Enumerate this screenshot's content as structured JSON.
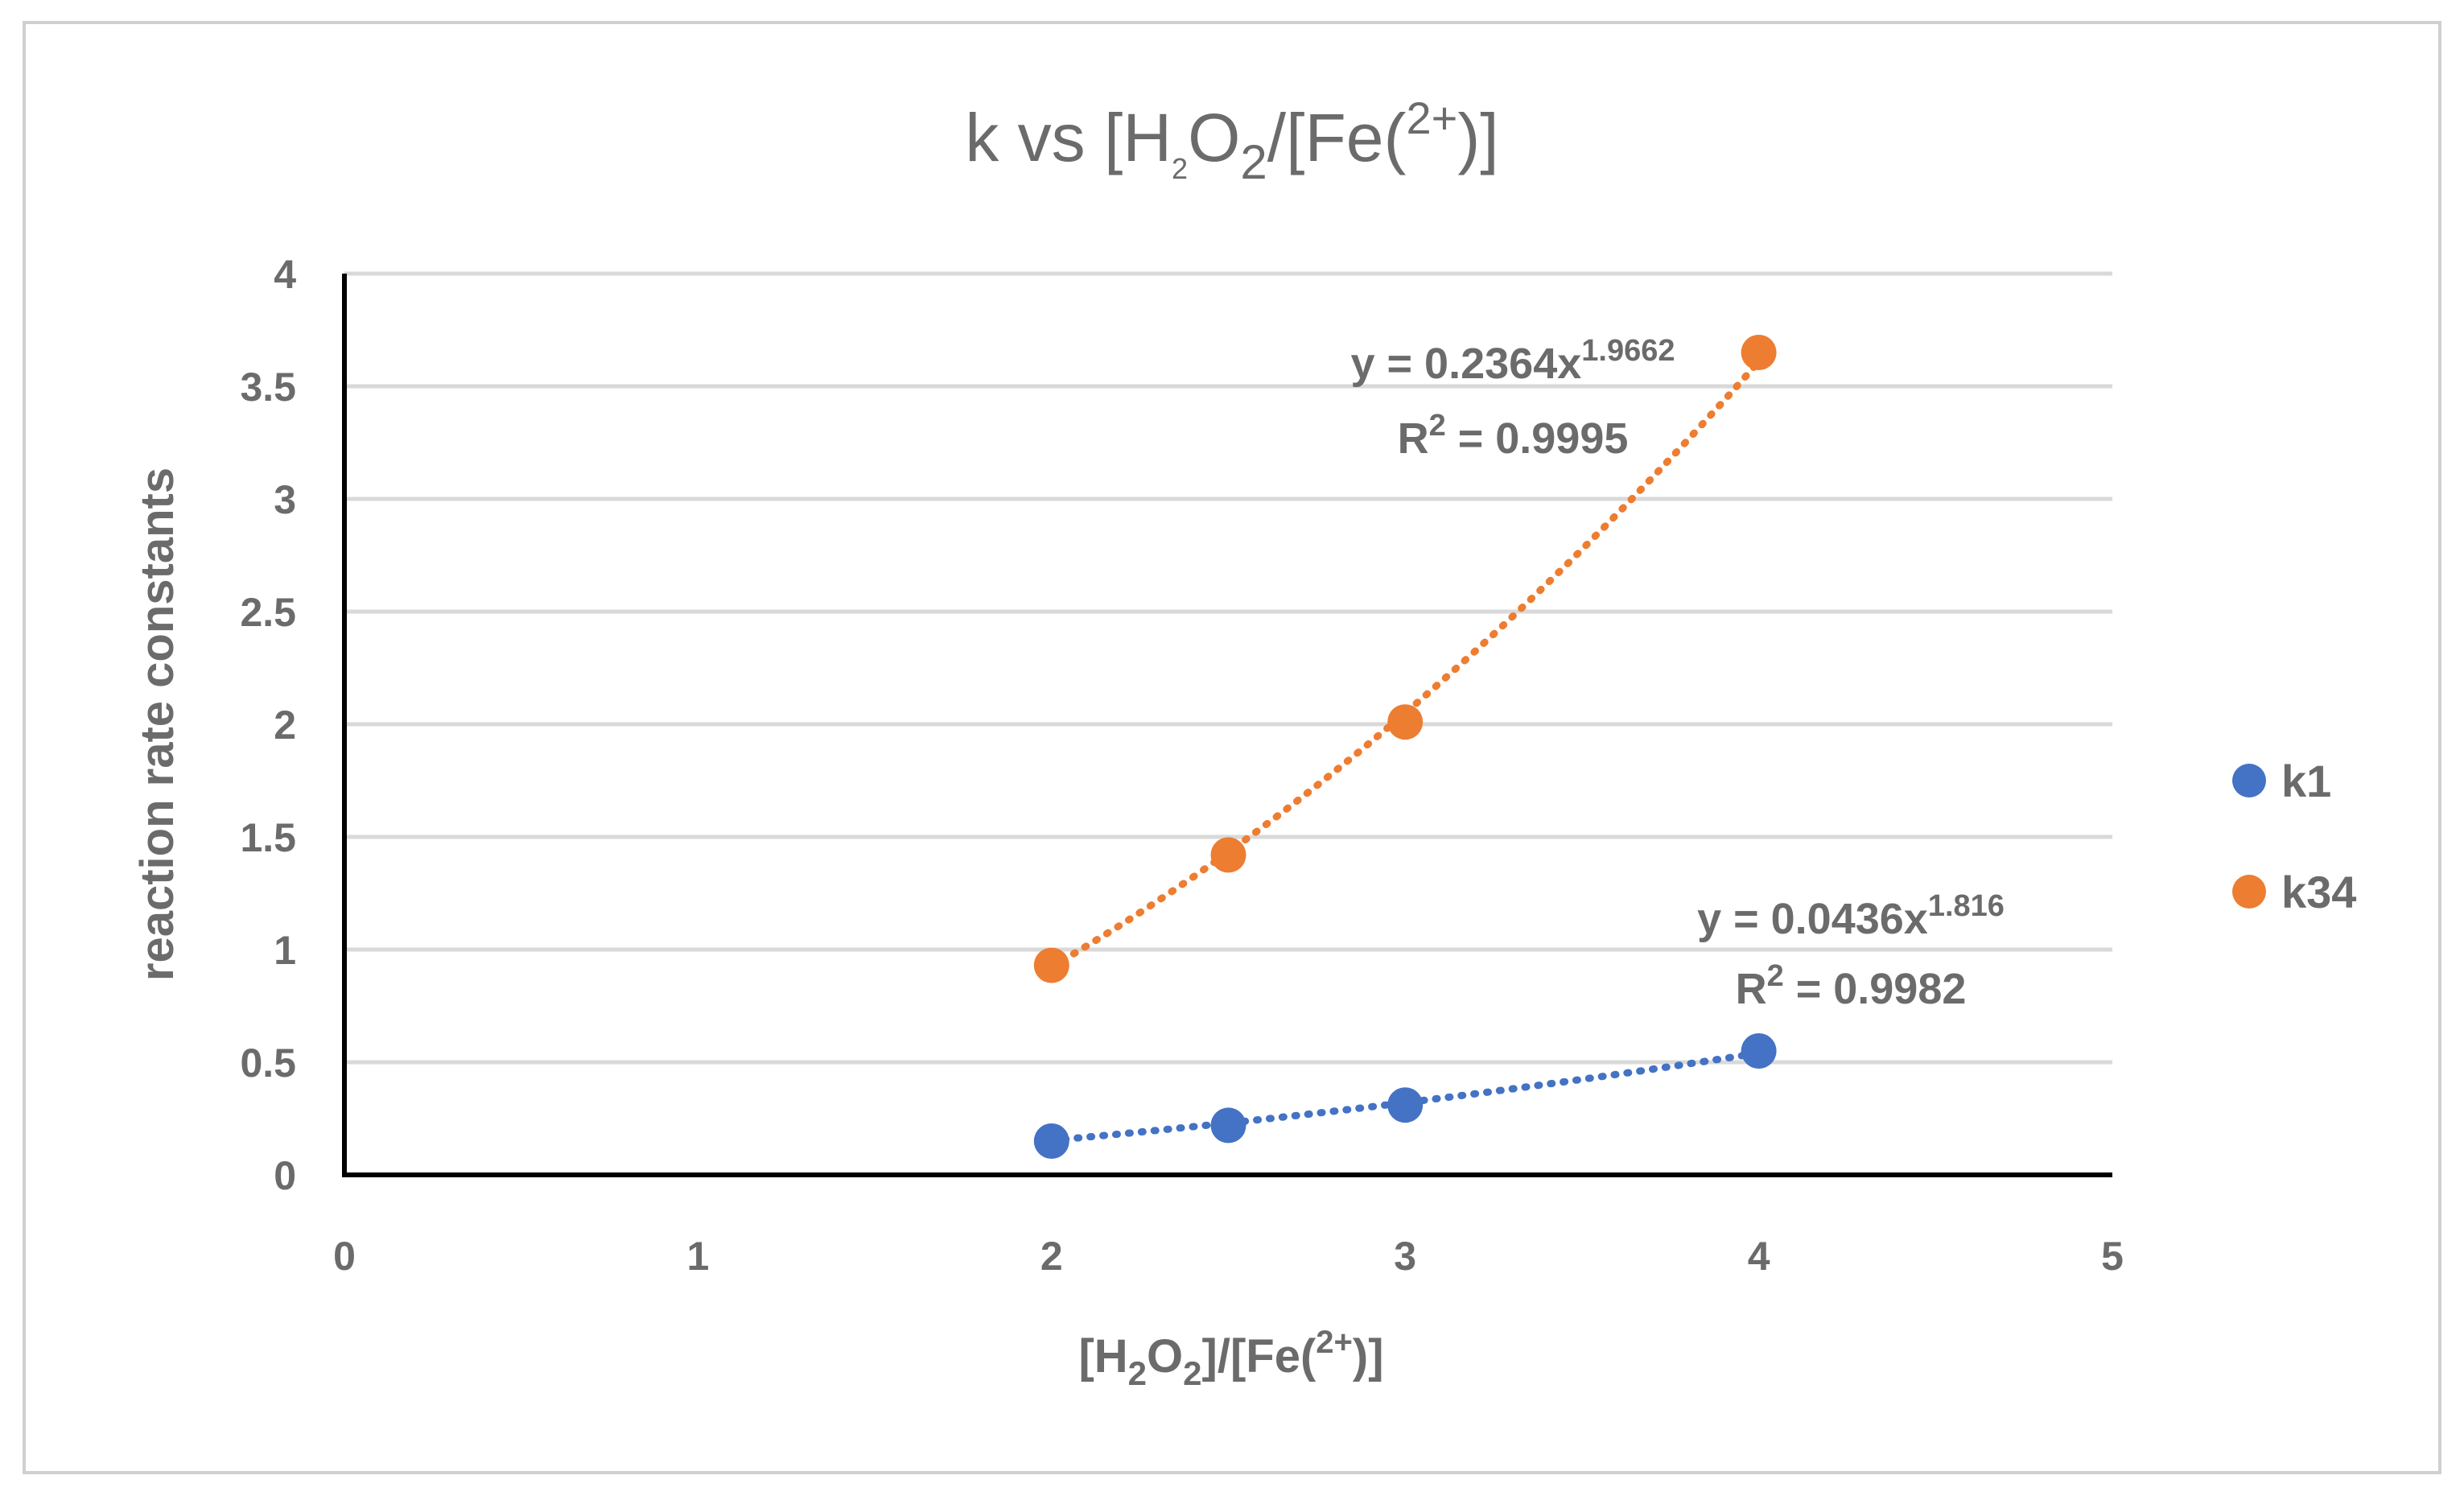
{
  "chart_data": {
    "type": "scatter",
    "title": {
      "main": "k vs [H",
      "sub1": "2",
      "mid": "O",
      "sub2": "2",
      "tail": "/[Fe(",
      "sup": "2+",
      "end": ")]"
    },
    "xlabel": {
      "main": "[H",
      "sub1": "2",
      "mid": "O",
      "sub2": "2",
      "tail": "]/[Fe(",
      "sup": "2+",
      "end": ")]"
    },
    "ylabel": "reaction rate constants",
    "xlim": [
      0,
      5
    ],
    "ylim": [
      0,
      4
    ],
    "x_ticks": [
      0,
      1,
      2,
      3,
      4,
      5
    ],
    "y_ticks": [
      0,
      0.5,
      1,
      1.5,
      2,
      2.5,
      3,
      3.5,
      4
    ],
    "x_tick_labels": [
      "0",
      "1",
      "2",
      "3",
      "4",
      "5"
    ],
    "y_tick_labels": [
      "0",
      "0.5",
      "1",
      "1.5",
      "2",
      "2.5",
      "3",
      "3.5",
      "4"
    ],
    "grid": "horizontal",
    "legend_position": "right",
    "series": [
      {
        "name": "k1",
        "color": "#4472c4",
        "x": [
          2,
          2.5,
          3,
          4
        ],
        "y": [
          0.15,
          0.22,
          0.31,
          0.55
        ],
        "trendline": {
          "type": "power",
          "coefficient": 0.0436,
          "exponent": 1.816,
          "equation_prefix": "y = 0.0436x",
          "equation_exponent": "1.816",
          "r2_prefix": "R",
          "r2_sup": "2",
          "r2_value": " = 0.9982"
        }
      },
      {
        "name": "k34",
        "color": "#ed7d31",
        "x": [
          2,
          2.5,
          3,
          4
        ],
        "y": [
          0.93,
          1.42,
          2.01,
          3.65
        ],
        "trendline": {
          "type": "power",
          "coefficient": 0.2364,
          "exponent": 1.9662,
          "equation_prefix": "y = 0.2364x",
          "equation_exponent": "1.9662",
          "r2_prefix": "R",
          "r2_sup": "2",
          "r2_value": " = 0.9995"
        }
      }
    ]
  }
}
